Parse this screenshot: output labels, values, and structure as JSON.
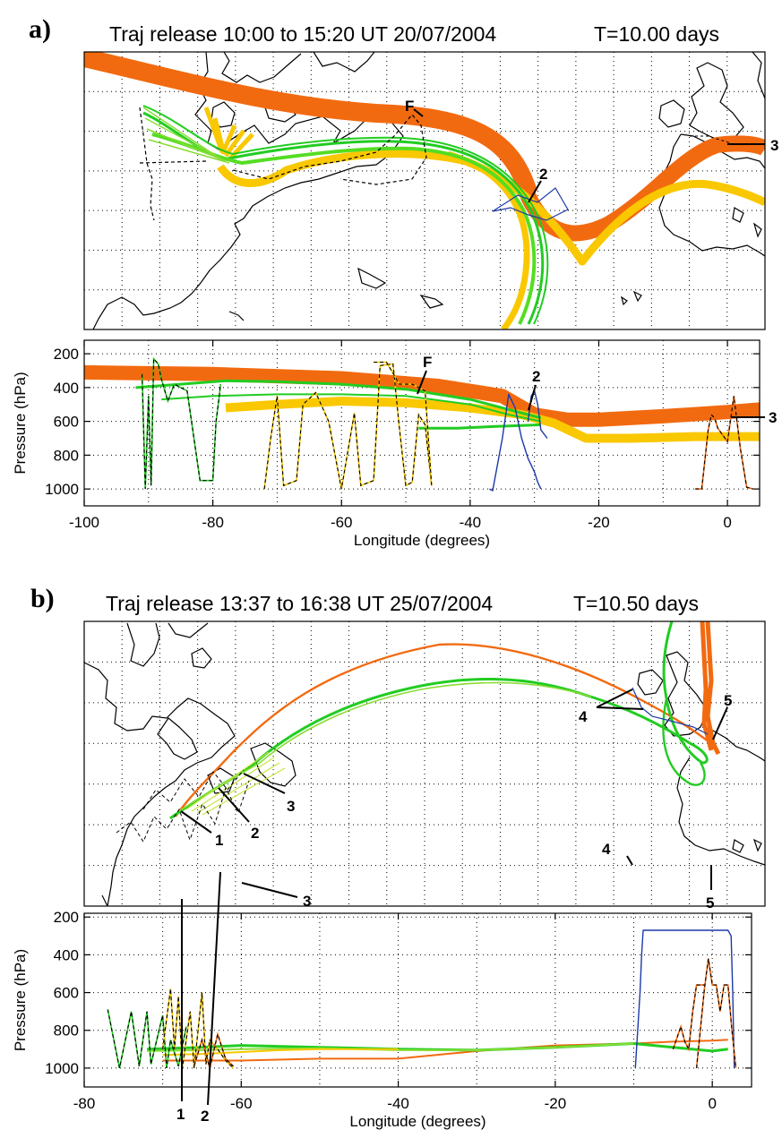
{
  "panels": [
    {
      "label": "a)",
      "title": "Traj release 10:00 to 15:20 UT 20/07/2004",
      "time_label": "T=10.00 days",
      "map_annotations": [
        "F",
        "2",
        "3"
      ],
      "profile_annotations": [
        "F",
        "2",
        "3"
      ]
    },
    {
      "label": "b)",
      "title": "Traj release 13:37 to 16:38 UT 25/07/2004",
      "time_label": "T=10.50 days",
      "map_annotations": [
        "1",
        "2",
        "3",
        "4",
        "5"
      ],
      "profile_annotations": [
        "1",
        "2",
        "3",
        "4",
        "5"
      ]
    }
  ],
  "colors": {
    "orange": "#f26a10",
    "yellow": "#f9c800",
    "green": "#22cc22",
    "light_green": "#88dd33",
    "blue": "#1a3aa8",
    "black": "#000000",
    "grid": "#000000"
  },
  "chart_data": [
    {
      "type": "line",
      "panel": "a",
      "view": "profile",
      "xlabel": "Longitude  (degrees)",
      "ylabel": "Pressure  (hPa)",
      "xlim": [
        -100,
        5
      ],
      "ylim": [
        1100,
        120
      ],
      "xticks": [
        -100,
        -80,
        -60,
        -40,
        -20,
        0
      ],
      "yticks": [
        200,
        400,
        600,
        800,
        1000
      ],
      "grid": true,
      "series": [
        {
          "color": "orange",
          "width": 16,
          "x": [
            -100,
            -80,
            -60,
            -45,
            -35,
            -30,
            -25,
            -20,
            -10,
            0,
            5
          ],
          "y": [
            310,
            320,
            345,
            390,
            450,
            560,
            590,
            590,
            570,
            545,
            530
          ]
        },
        {
          "color": "yellow",
          "width": 10,
          "x": [
            -78,
            -70,
            -60,
            -50,
            -40,
            -32,
            -27,
            -22,
            -15,
            -5,
            5
          ],
          "y": [
            520,
            500,
            480,
            490,
            520,
            560,
            610,
            700,
            700,
            690,
            690
          ]
        },
        {
          "color": "green",
          "width": 3,
          "x": [
            -92,
            -85,
            -78,
            -70,
            -60,
            -50,
            -40,
            -33,
            -29
          ],
          "y": [
            400,
            380,
            360,
            365,
            380,
            410,
            470,
            540,
            580
          ]
        },
        {
          "color": "green",
          "width": 2,
          "x": [
            -88,
            -80,
            -70,
            -60,
            -50,
            -40,
            -34,
            -29
          ],
          "y": [
            470,
            450,
            440,
            440,
            450,
            500,
            560,
            600
          ]
        },
        {
          "color": "green",
          "width": 3,
          "x": [
            -48,
            -42,
            -36,
            -32,
            -29
          ],
          "y": [
            640,
            640,
            630,
            625,
            620
          ]
        },
        {
          "color": "black",
          "dashed": true,
          "stroke2": "green",
          "x": [
            -91,
            -90.5,
            -90,
            -89.6,
            -89.2,
            -88.5,
            -88,
            -87,
            -86,
            -84,
            -82,
            -80,
            -79.5,
            -79,
            -78.8
          ],
          "y": [
            320,
            1000,
            450,
            980,
            230,
            260,
            350,
            480,
            380,
            420,
            950,
            950,
            600,
            450,
            380
          ]
        },
        {
          "color": "black",
          "dashed": true,
          "stroke2": "yellow",
          "x": [
            -72,
            -71,
            -70,
            -69,
            -67,
            -66,
            -64,
            -62,
            -60,
            -58,
            -57,
            -55,
            -54,
            -52,
            -51,
            -50,
            -49,
            -48,
            -47,
            -46
          ],
          "y": [
            1000,
            700,
            450,
            980,
            950,
            500,
            430,
            600,
            1000,
            550,
            980,
            950,
            270,
            260,
            640,
            980,
            960,
            560,
            620,
            980
          ]
        },
        {
          "color": "black",
          "dashed": true,
          "stroke2": "yellow",
          "x": [
            -55,
            -53,
            -51,
            -49,
            -47,
            -46
          ],
          "y": [
            250,
            250,
            380,
            380,
            420,
            980
          ]
        },
        {
          "color": "blue",
          "x": [
            -37,
            -36.5,
            -35,
            -34,
            -33,
            -32,
            -31,
            -30,
            -29.5,
            -29
          ],
          "y": [
            1000,
            1010,
            700,
            440,
            520,
            700,
            820,
            900,
            960,
            1000
          ]
        },
        {
          "color": "blue",
          "x": [
            -31,
            -30.5,
            -30,
            -29.5,
            -29,
            -28
          ],
          "y": [
            600,
            450,
            420,
            500,
            650,
            700
          ]
        },
        {
          "color": "black",
          "dashed": true,
          "stroke2": "orange",
          "x": [
            -5,
            -4,
            -3,
            -2.5,
            -2,
            -1.5,
            0,
            1,
            2,
            3,
            4
          ],
          "y": [
            1000,
            1000,
            650,
            560,
            580,
            640,
            720,
            450,
            760,
            990,
            1000
          ]
        }
      ]
    },
    {
      "type": "line",
      "panel": "b",
      "view": "profile",
      "xlabel": "Longitude  (degrees)",
      "ylabel": "Pressure  (hPa)",
      "xlim": [
        -80,
        5
      ],
      "ylim": [
        1100,
        180
      ],
      "xticks": [
        -80,
        -60,
        -40,
        -20,
        0
      ],
      "yticks": [
        200,
        400,
        600,
        800,
        1000
      ],
      "grid": true,
      "series": [
        {
          "color": "orange",
          "width": 2,
          "x": [
            -70,
            -65,
            -60,
            -50,
            -40,
            -30,
            -20,
            -10,
            -5,
            0,
            2
          ],
          "y": [
            960,
            960,
            960,
            950,
            950,
            910,
            880,
            870,
            860,
            855,
            850
          ]
        },
        {
          "color": "green",
          "width": 3,
          "x": [
            -72,
            -65,
            -60,
            -50,
            -40,
            -30,
            -20,
            -10,
            -5,
            0,
            2
          ],
          "y": [
            900,
            890,
            880,
            890,
            900,
            905,
            890,
            870,
            890,
            910,
            900
          ]
        },
        {
          "color": "light_green",
          "width": 2,
          "x": [
            -72,
            -65,
            -60,
            -50,
            -40,
            -30,
            -20,
            -10
          ],
          "y": [
            910,
            905,
            900,
            895,
            905,
            905,
            890,
            870
          ]
        },
        {
          "color": "yellow",
          "width": 2,
          "x": [
            -70,
            -65,
            -60,
            -55,
            -50,
            -40
          ],
          "y": [
            930,
            925,
            915,
            905,
            900,
            900
          ]
        },
        {
          "color": "black",
          "dashed": true,
          "stroke2": "green",
          "x": [
            -77,
            -76,
            -75.5,
            -74,
            -73,
            -72,
            -71.5,
            -70,
            -69.5,
            -69,
            -68,
            -67
          ],
          "y": [
            690,
            900,
            1000,
            700,
            990,
            700,
            980,
            720,
            1000,
            850,
            990,
            780
          ]
        },
        {
          "color": "black",
          "dashed": true,
          "stroke2": "yellow",
          "x": [
            -70,
            -69,
            -68.5,
            -68,
            -67.5,
            -67,
            -66.5,
            -66,
            -65,
            -64.5,
            -64,
            -63,
            -62,
            -61
          ],
          "y": [
            900,
            580,
            900,
            620,
            1000,
            850,
            700,
            1000,
            600,
            980,
            850,
            900,
            960,
            1000
          ]
        },
        {
          "color": "black",
          "dashed": true,
          "stroke2": "orange",
          "x": [
            -66,
            -65,
            -64,
            -63,
            -62,
            -61
          ],
          "y": [
            990,
            850,
            1000,
            820,
            950,
            990
          ]
        },
        {
          "color": "blue",
          "x": [
            -9.8,
            -9.5,
            -9.2,
            -9,
            -8.8,
            2,
            2.4,
            2.6,
            2.8
          ],
          "y": [
            1000,
            800,
            600,
            400,
            270,
            270,
            300,
            600,
            1000
          ]
        },
        {
          "color": "black",
          "dashed": true,
          "stroke2": "orange",
          "x": [
            -2,
            -1,
            -0.5,
            0,
            0.5,
            1,
            1.5,
            2,
            2.5,
            3
          ],
          "y": [
            1000,
            580,
            420,
            560,
            560,
            700,
            560,
            560,
            800,
            1000
          ]
        },
        {
          "color": "black",
          "dashed": true,
          "stroke2": "orange",
          "x": [
            -5,
            -4,
            -3.5,
            -3,
            -2.5,
            -2,
            -1
          ],
          "y": [
            900,
            780,
            860,
            900,
            700,
            560,
            560
          ]
        }
      ]
    }
  ]
}
